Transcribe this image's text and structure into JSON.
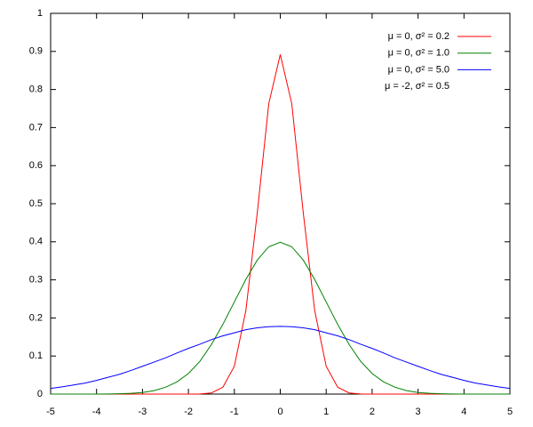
{
  "chart_data": {
    "type": "line",
    "x": [
      -5,
      -4.75,
      -4.5,
      -4.25,
      -4,
      -3.75,
      -3.5,
      -3.25,
      -3,
      -2.75,
      -2.5,
      -2.25,
      -2,
      -1.75,
      -1.5,
      -1.25,
      -1,
      -0.75,
      -0.5,
      -0.25,
      0,
      0.25,
      0.5,
      0.75,
      1,
      1.25,
      1.5,
      1.75,
      2,
      2.25,
      2.5,
      2.75,
      3,
      3.25,
      3.5,
      3.75,
      4,
      4.25,
      4.5,
      4.75,
      5
    ],
    "series": [
      {
        "name": "μ = 0, σ² = 0.2",
        "color": "#ff0000",
        "values": [
          0,
          0,
          0,
          0,
          0,
          0,
          0,
          0,
          0,
          0,
          0,
          0,
          0,
          0.0004,
          0.003,
          0.018,
          0.073,
          0.219,
          0.477,
          0.763,
          0.892,
          0.763,
          0.477,
          0.219,
          0.073,
          0.018,
          0.003,
          0.0004,
          0,
          0,
          0,
          0,
          0,
          0,
          0,
          0,
          0,
          0,
          0,
          0,
          0
        ]
      },
      {
        "name": "μ = 0, σ² = 1.0",
        "color": "#008000",
        "values": [
          0,
          0,
          0,
          0,
          0.0001,
          0.0004,
          0.001,
          0.002,
          0.004,
          0.009,
          0.018,
          0.032,
          0.054,
          0.086,
          0.13,
          0.183,
          0.242,
          0.301,
          0.352,
          0.387,
          0.399,
          0.387,
          0.352,
          0.301,
          0.242,
          0.183,
          0.13,
          0.086,
          0.054,
          0.032,
          0.018,
          0.009,
          0.004,
          0.002,
          0.001,
          0.0004,
          0.0001,
          0,
          0,
          0,
          0
        ]
      },
      {
        "name": "μ = 0, σ² = 5.0",
        "color": "#0000ff",
        "values": [
          0.015,
          0.019,
          0.024,
          0.029,
          0.036,
          0.044,
          0.052,
          0.062,
          0.073,
          0.084,
          0.095,
          0.108,
          0.12,
          0.131,
          0.143,
          0.153,
          0.161,
          0.169,
          0.174,
          0.177,
          0.178,
          0.177,
          0.174,
          0.169,
          0.161,
          0.153,
          0.143,
          0.131,
          0.12,
          0.108,
          0.095,
          0.084,
          0.073,
          0.062,
          0.052,
          0.044,
          0.036,
          0.029,
          0.024,
          0.019,
          0.015
        ]
      },
      {
        "name": "μ = -2, σ² = 0.5",
        "values": [
          null,
          null,
          null,
          null,
          null,
          null,
          null,
          null,
          null,
          null,
          null,
          null,
          null,
          null,
          null,
          null,
          null,
          null,
          null,
          null,
          null,
          null,
          null,
          null,
          null,
          null,
          null,
          null,
          null,
          null,
          null,
          null,
          null,
          null,
          null,
          null,
          null,
          null,
          null,
          null,
          null
        ]
      }
    ],
    "xlim": [
      -5,
      5
    ],
    "xticks": [
      -5,
      -4,
      -3,
      -2,
      -1,
      0,
      1,
      2,
      3,
      4,
      5
    ],
    "ylim": [
      0,
      1
    ],
    "yticks": [
      0,
      0.1,
      0.2,
      0.3,
      0.4,
      0.5,
      0.6,
      0.7,
      0.8,
      0.9,
      1
    ],
    "legend": "top-right"
  }
}
